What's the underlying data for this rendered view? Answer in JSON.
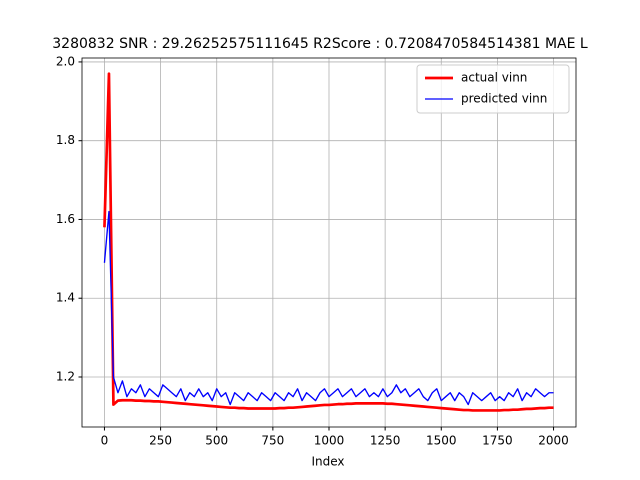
{
  "chart_data": {
    "type": "line",
    "title": "3280832  SNR : 29.26252575111645 R2Score : 0.7208470584514381 MAE L",
    "xlabel": "Index",
    "x": [
      0,
      20,
      40,
      60,
      80,
      100,
      120,
      140,
      160,
      180,
      200,
      220,
      240,
      260,
      280,
      300,
      320,
      340,
      360,
      380,
      400,
      420,
      440,
      460,
      480,
      500,
      520,
      540,
      560,
      580,
      600,
      620,
      640,
      660,
      680,
      700,
      720,
      740,
      760,
      780,
      800,
      820,
      840,
      860,
      880,
      900,
      920,
      940,
      960,
      980,
      1000,
      1020,
      1040,
      1060,
      1080,
      1100,
      1120,
      1140,
      1160,
      1180,
      1200,
      1220,
      1240,
      1260,
      1280,
      1300,
      1320,
      1340,
      1360,
      1380,
      1400,
      1420,
      1440,
      1460,
      1480,
      1500,
      1520,
      1540,
      1560,
      1580,
      1600,
      1620,
      1640,
      1660,
      1680,
      1700,
      1720,
      1740,
      1760,
      1780,
      1800,
      1820,
      1840,
      1860,
      1880,
      1900,
      1920,
      1940,
      1960,
      1980,
      2000
    ],
    "series": [
      {
        "name": "actual vinn",
        "color": "#ff0000",
        "width": 2,
        "values": [
          1.58,
          1.97,
          1.13,
          1.14,
          1.141,
          1.141,
          1.141,
          1.14,
          1.14,
          1.139,
          1.139,
          1.138,
          1.138,
          1.137,
          1.136,
          1.135,
          1.134,
          1.133,
          1.132,
          1.131,
          1.13,
          1.129,
          1.128,
          1.127,
          1.126,
          1.125,
          1.124,
          1.123,
          1.122,
          1.122,
          1.121,
          1.121,
          1.12,
          1.12,
          1.12,
          1.12,
          1.12,
          1.12,
          1.12,
          1.121,
          1.121,
          1.122,
          1.122,
          1.123,
          1.124,
          1.125,
          1.126,
          1.127,
          1.128,
          1.129,
          1.129,
          1.13,
          1.131,
          1.131,
          1.132,
          1.132,
          1.133,
          1.133,
          1.133,
          1.133,
          1.133,
          1.133,
          1.133,
          1.132,
          1.132,
          1.131,
          1.13,
          1.129,
          1.128,
          1.127,
          1.126,
          1.125,
          1.124,
          1.123,
          1.122,
          1.121,
          1.12,
          1.119,
          1.118,
          1.117,
          1.116,
          1.116,
          1.115,
          1.115,
          1.115,
          1.115,
          1.115,
          1.115,
          1.115,
          1.116,
          1.116,
          1.117,
          1.117,
          1.118,
          1.119,
          1.119,
          1.12,
          1.121,
          1.121,
          1.122,
          1.122
        ]
      },
      {
        "name": "predicted vinn",
        "color": "#0000ff",
        "width": 1,
        "values": [
          1.49,
          1.62,
          1.2,
          1.16,
          1.19,
          1.15,
          1.17,
          1.16,
          1.18,
          1.15,
          1.17,
          1.16,
          1.15,
          1.18,
          1.17,
          1.16,
          1.15,
          1.17,
          1.14,
          1.16,
          1.15,
          1.17,
          1.15,
          1.16,
          1.14,
          1.17,
          1.15,
          1.16,
          1.13,
          1.16,
          1.15,
          1.14,
          1.16,
          1.15,
          1.14,
          1.16,
          1.15,
          1.14,
          1.16,
          1.15,
          1.14,
          1.16,
          1.15,
          1.17,
          1.14,
          1.16,
          1.15,
          1.14,
          1.16,
          1.17,
          1.15,
          1.16,
          1.17,
          1.15,
          1.16,
          1.17,
          1.15,
          1.16,
          1.17,
          1.15,
          1.16,
          1.15,
          1.17,
          1.15,
          1.16,
          1.18,
          1.16,
          1.17,
          1.15,
          1.16,
          1.17,
          1.15,
          1.14,
          1.16,
          1.17,
          1.14,
          1.15,
          1.16,
          1.14,
          1.16,
          1.15,
          1.13,
          1.16,
          1.15,
          1.14,
          1.15,
          1.16,
          1.14,
          1.15,
          1.14,
          1.16,
          1.15,
          1.17,
          1.14,
          1.16,
          1.15,
          1.17,
          1.16,
          1.15,
          1.16,
          1.16
        ]
      }
    ],
    "xlim": [
      -100,
      2100
    ],
    "xticks": [
      0,
      250,
      500,
      750,
      1000,
      1250,
      1500,
      1750,
      2000
    ],
    "ylim": [
      1.073,
      2.01
    ],
    "yticks": [
      1.2,
      1.4,
      1.6,
      1.8,
      {
        "value": 2,
        "label": "2.0"
      }
    ],
    "grid": true,
    "legend": "upper-right"
  }
}
